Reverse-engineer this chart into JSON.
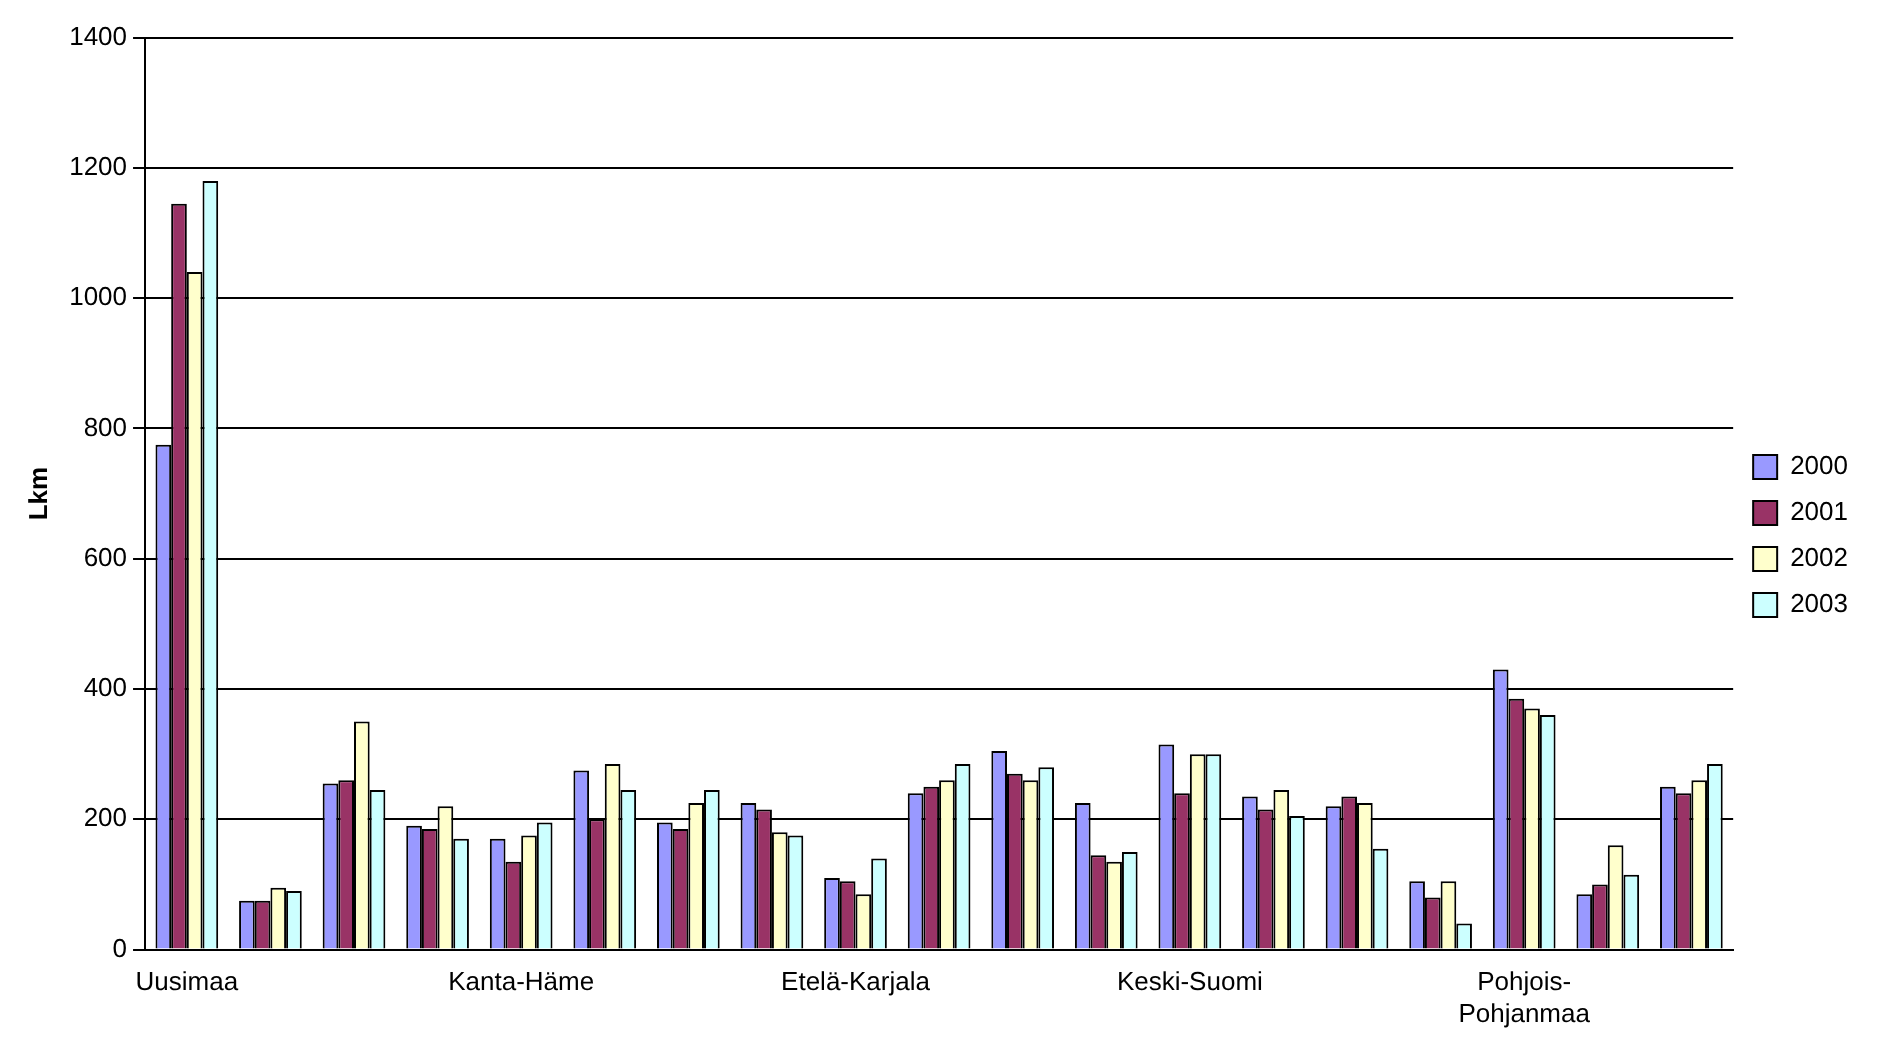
{
  "chart_data": {
    "type": "bar",
    "ylabel": "Lkm",
    "categories": [
      "Uusimaa",
      null,
      null,
      null,
      "Kanta-Häme",
      null,
      null,
      null,
      "Etelä-Karjala",
      null,
      null,
      null,
      "Keski-Suomi",
      null,
      null,
      null,
      "Pohjois-Pohjanmaa",
      null,
      null
    ],
    "series": [
      {
        "name": "2000",
        "color": "#9999ff",
        "values": [
          775,
          75,
          255,
          190,
          170,
          275,
          195,
          225,
          110,
          240,
          305,
          225,
          315,
          235,
          220,
          105,
          430,
          85,
          250
        ]
      },
      {
        "name": "2001",
        "color": "#993366",
        "values": [
          1145,
          75,
          260,
          185,
          135,
          200,
          185,
          215,
          105,
          250,
          270,
          145,
          240,
          215,
          235,
          80,
          385,
          100,
          240
        ]
      },
      {
        "name": "2002",
        "color": "#ffffcc",
        "values": [
          1040,
          95,
          350,
          220,
          175,
          285,
          225,
          180,
          85,
          260,
          260,
          135,
          300,
          245,
          225,
          105,
          370,
          160,
          260
        ]
      },
      {
        "name": "2003",
        "color": "#ccffff",
        "values": [
          1180,
          90,
          245,
          170,
          195,
          245,
          245,
          175,
          140,
          285,
          280,
          150,
          300,
          205,
          155,
          40,
          360,
          115,
          285
        ]
      }
    ],
    "ylim": [
      0,
      1400
    ],
    "yticks": [
      0,
      200,
      400,
      600,
      800,
      1000,
      1200,
      1400
    ],
    "grid": "y",
    "legend": "right"
  }
}
